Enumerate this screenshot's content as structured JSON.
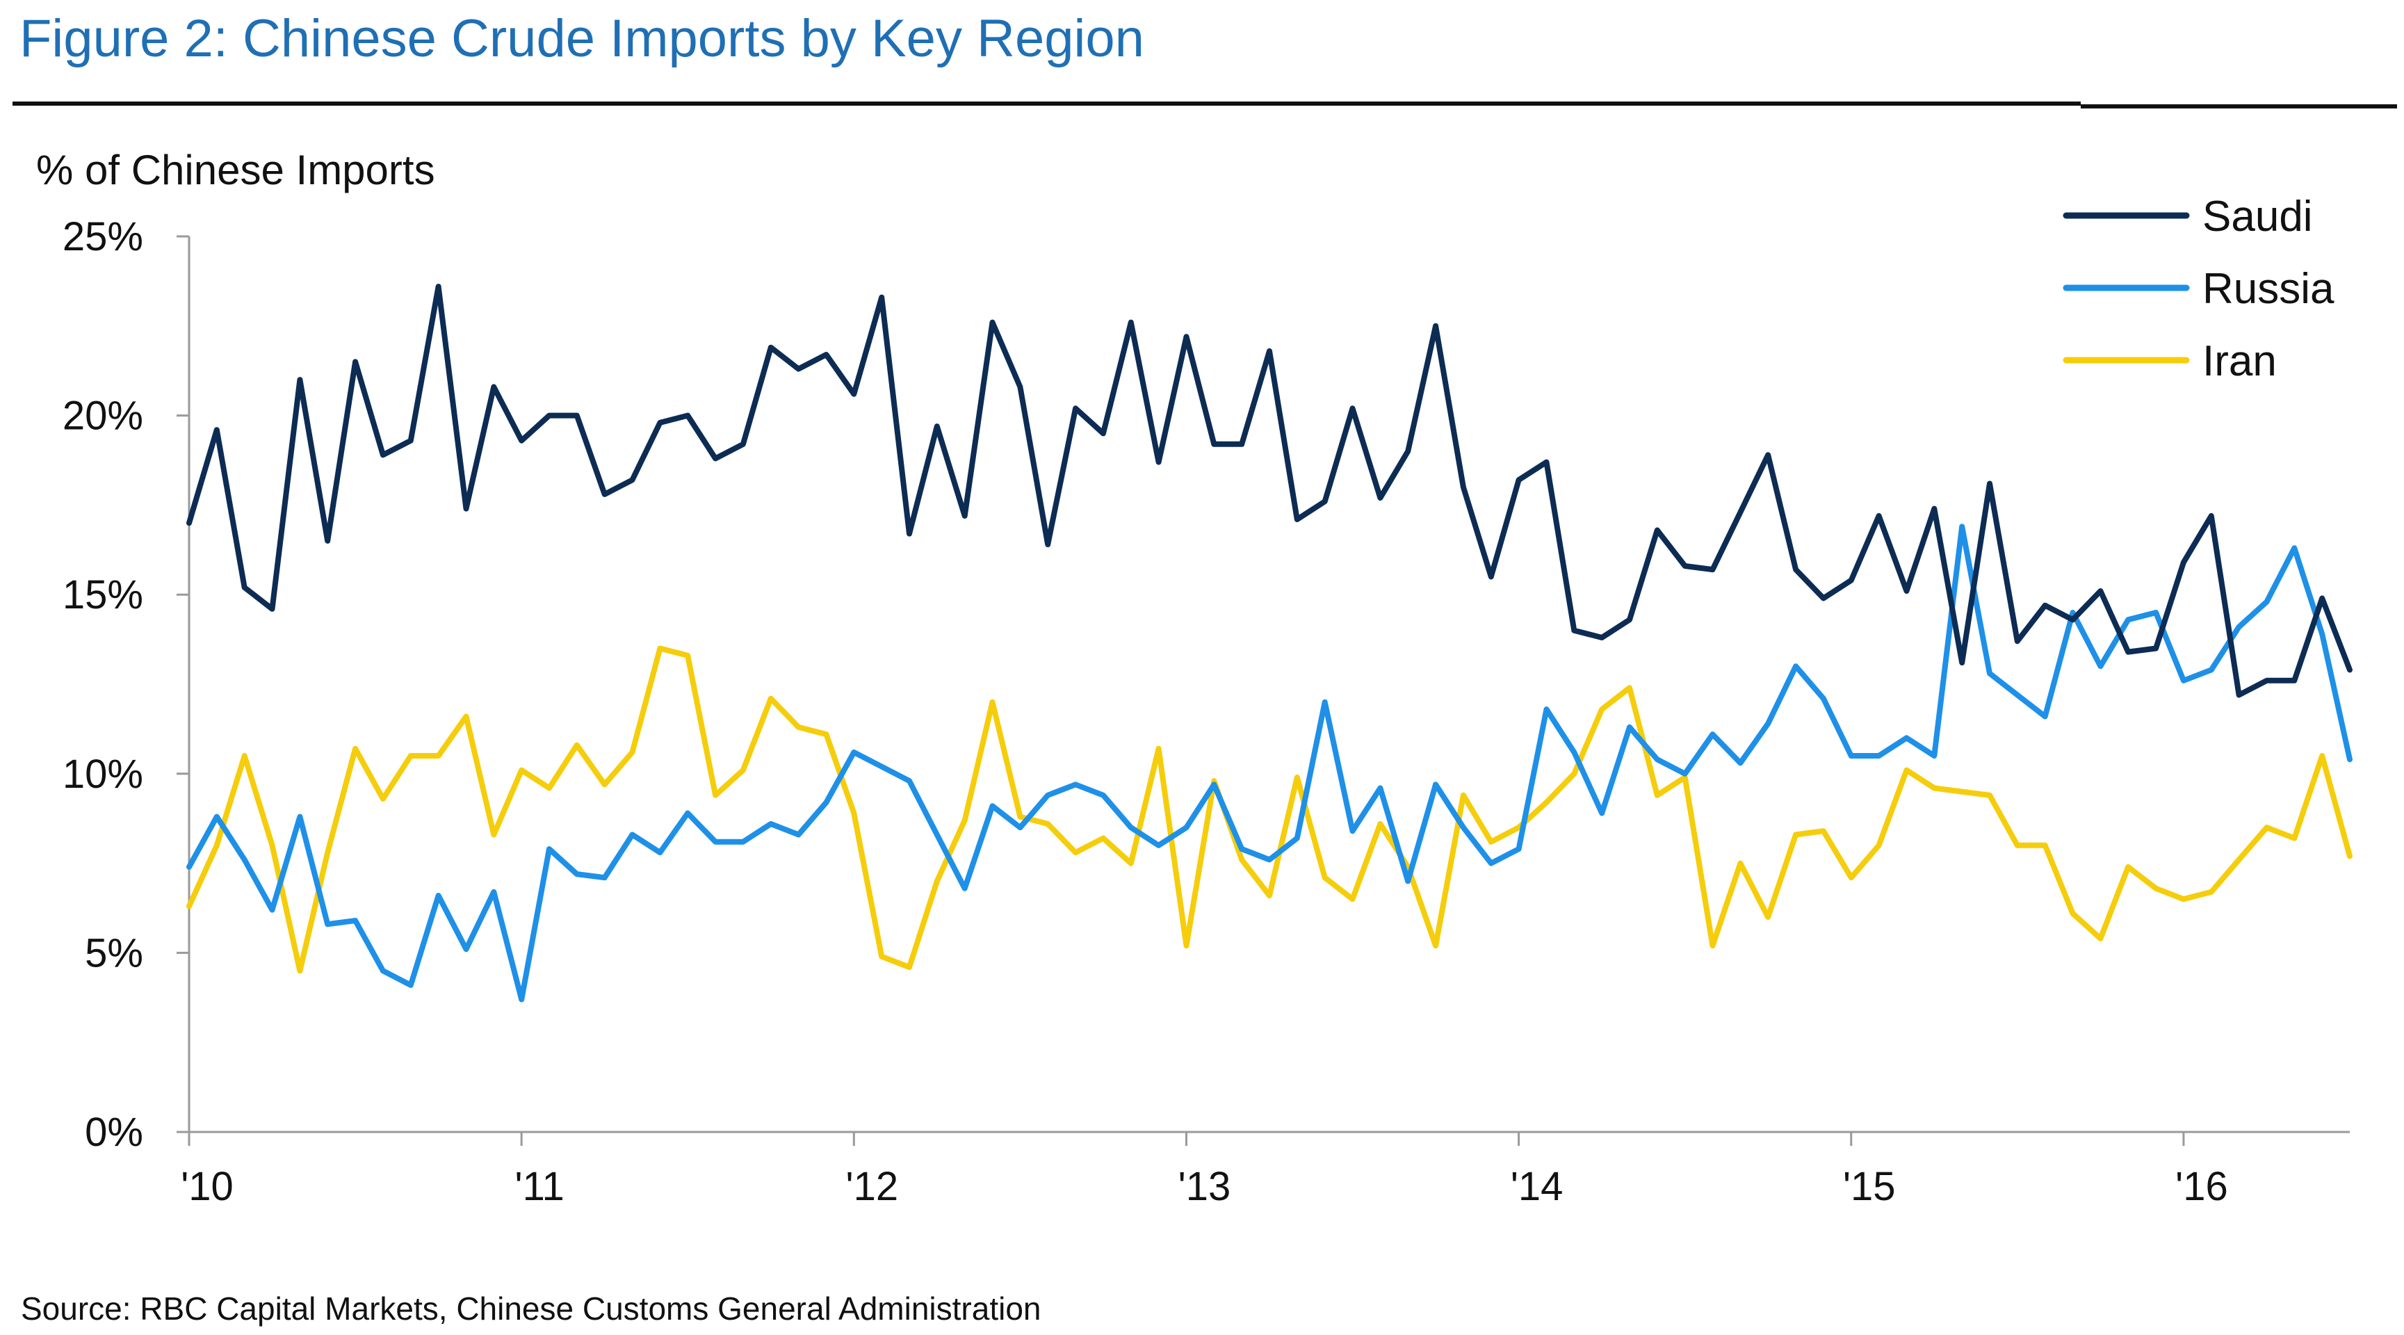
{
  "title": "Figure 2: Chinese Crude Imports by Key Region",
  "source": "Source: RBC Capital Markets, Chinese Customs General Administration",
  "chart_data": {
    "type": "line",
    "ylabel": "% of Chinese Imports",
    "xlabel": "",
    "ylim": [
      0,
      25
    ],
    "yticks": [
      {
        "value": 0,
        "label": "0%"
      },
      {
        "value": 5,
        "label": "5%"
      },
      {
        "value": 10,
        "label": "10%"
      },
      {
        "value": 15,
        "label": "15%"
      },
      {
        "value": 20,
        "label": "20%"
      },
      {
        "value": 25,
        "label": "25%"
      }
    ],
    "xticks": [
      {
        "index": 0,
        "label": "'10"
      },
      {
        "index": 12,
        "label": "'11"
      },
      {
        "index": 24,
        "label": "'12"
      },
      {
        "index": 36,
        "label": "'13"
      },
      {
        "index": 48,
        "label": "'14"
      },
      {
        "index": 60,
        "label": "'15"
      },
      {
        "index": 72,
        "label": "'16"
      }
    ],
    "x_start": "2010-01",
    "x_frequency": "monthly",
    "legend_position": "top-right",
    "grid": false,
    "series": [
      {
        "name": "Saudi",
        "color": "#0d2c54",
        "values": [
          17.0,
          19.6,
          15.2,
          14.6,
          21.0,
          16.5,
          21.5,
          18.9,
          19.3,
          23.6,
          17.4,
          20.8,
          19.3,
          20.0,
          20.0,
          17.8,
          18.2,
          19.8,
          20.0,
          18.8,
          19.2,
          21.9,
          21.3,
          21.7,
          20.6,
          23.3,
          16.7,
          19.7,
          17.2,
          22.6,
          20.8,
          16.4,
          20.2,
          19.5,
          22.6,
          18.7,
          22.2,
          19.2,
          19.2,
          21.8,
          17.1,
          17.6,
          20.2,
          17.7,
          19.0,
          22.5,
          18.0,
          15.5,
          18.2,
          18.7,
          14.0,
          13.8,
          14.3,
          16.8,
          15.8,
          15.7,
          17.3,
          18.9,
          15.7,
          14.9,
          15.4,
          17.2,
          15.1,
          17.4,
          13.1,
          18.1,
          13.7,
          14.7,
          14.3,
          15.1,
          13.4,
          13.5,
          15.9,
          17.2,
          12.2,
          12.6,
          12.6,
          14.9,
          12.9
        ]
      },
      {
        "name": "Russia",
        "color": "#1e90e8",
        "values": [
          7.4,
          8.8,
          7.6,
          6.2,
          8.8,
          5.8,
          5.9,
          4.5,
          4.1,
          6.6,
          5.1,
          6.7,
          3.7,
          7.9,
          7.2,
          7.1,
          8.3,
          7.8,
          8.9,
          8.1,
          8.1,
          8.6,
          8.3,
          9.2,
          10.6,
          10.2,
          9.8,
          8.3,
          6.8,
          9.1,
          8.5,
          9.4,
          9.7,
          9.4,
          8.5,
          8.0,
          8.5,
          9.7,
          7.9,
          7.6,
          8.2,
          12.0,
          8.4,
          9.6,
          7.0,
          9.7,
          8.5,
          7.5,
          7.9,
          11.8,
          10.6,
          8.9,
          11.3,
          10.4,
          10.0,
          11.1,
          10.3,
          11.4,
          13.0,
          12.1,
          10.5,
          10.5,
          11.0,
          10.5,
          16.9,
          12.8,
          12.2,
          11.6,
          14.5,
          13.0,
          14.3,
          14.5,
          12.6,
          12.9,
          14.1,
          14.8,
          16.3,
          13.9,
          10.4
        ]
      },
      {
        "name": "Iran",
        "color": "#f5cd0a",
        "values": [
          6.3,
          8.0,
          10.5,
          8.0,
          4.5,
          7.8,
          10.7,
          9.3,
          10.5,
          10.5,
          11.6,
          8.3,
          10.1,
          9.6,
          10.8,
          9.7,
          10.6,
          13.5,
          13.3,
          9.4,
          10.1,
          12.1,
          11.3,
          11.1,
          8.9,
          4.9,
          4.6,
          7.0,
          8.7,
          12.0,
          8.8,
          8.6,
          7.8,
          8.2,
          7.5,
          10.7,
          5.2,
          9.8,
          7.6,
          6.6,
          9.9,
          7.1,
          6.5,
          8.6,
          7.4,
          5.2,
          9.4,
          8.1,
          8.5,
          9.2,
          10.0,
          11.8,
          12.4,
          9.4,
          9.9,
          5.2,
          7.5,
          6.0,
          8.3,
          8.4,
          7.1,
          8.0,
          10.1,
          9.6,
          9.5,
          9.4,
          8.0,
          8.0,
          6.1,
          5.4,
          7.4,
          6.8,
          6.5,
          6.7,
          7.6,
          8.5,
          8.2,
          10.5,
          7.7
        ]
      }
    ]
  }
}
